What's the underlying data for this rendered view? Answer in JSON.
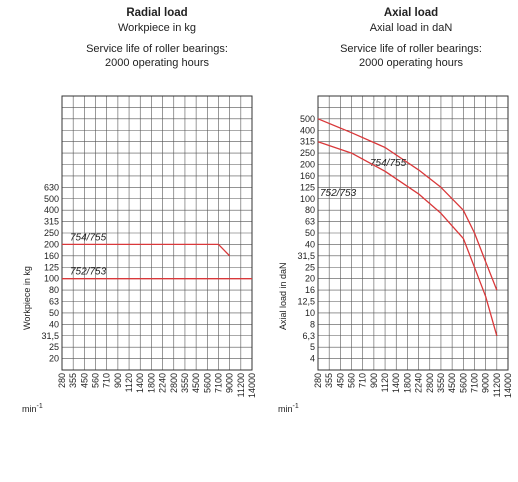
{
  "chart_data": [
    {
      "type": "line",
      "title": "Radial load",
      "subtitle": "Workpiece in kg",
      "note_line1": "Service life of roller bearings:",
      "note_line2": "2000 operating hours",
      "ylabel": "Workpiece in kg",
      "xunit": "min",
      "xunit_exp": "-1",
      "x": [
        "280",
        "355",
        "450",
        "560",
        "710",
        "900",
        "1120",
        "1400",
        "1800",
        "2240",
        "2800",
        "3550",
        "4500",
        "5600",
        "7100",
        "9000",
        "11200",
        "14000"
      ],
      "y_ticks": [
        "20",
        "25",
        "31,5",
        "40",
        "50",
        "63",
        "80",
        "100",
        "125",
        "160",
        "200",
        "250",
        "315",
        "400",
        "500",
        "630"
      ],
      "grid_rows": 24,
      "series": [
        {
          "name": "754/755",
          "points": [
            [
              280,
              200
            ],
            [
              7100,
              200
            ],
            [
              9000,
              160
            ]
          ]
        },
        {
          "name": "752/753",
          "points": [
            [
              280,
              100
            ],
            [
              14000,
              100
            ]
          ]
        }
      ]
    },
    {
      "type": "line",
      "title": "Axial load",
      "subtitle": "Axial load in daN",
      "note_line1": "Service life of roller bearings:",
      "note_line2": "2000 operating hours",
      "ylabel": "Axial load in daN",
      "xunit": "min",
      "xunit_exp": "-1",
      "x": [
        "280",
        "355",
        "450",
        "560",
        "710",
        "900",
        "1120",
        "1400",
        "1800",
        "2240",
        "2800",
        "3550",
        "4500",
        "5600",
        "7100",
        "9000",
        "11200",
        "14000"
      ],
      "y_ticks": [
        "4",
        "5",
        "6,3",
        "8",
        "10",
        "12,5",
        "16",
        "20",
        "25",
        "31,5",
        "40",
        "50",
        "63",
        "80",
        "100",
        "125",
        "160",
        "200",
        "250",
        "315",
        "400",
        "500"
      ],
      "grid_rows": 24,
      "series": [
        {
          "name": "754/755",
          "points": [
            [
              280,
              500
            ],
            [
              560,
              380
            ],
            [
              1120,
              280
            ],
            [
              2240,
              180
            ],
            [
              3550,
              125
            ],
            [
              5600,
              80
            ],
            [
              7100,
              50
            ],
            [
              9000,
              28
            ],
            [
              11200,
              16
            ]
          ]
        },
        {
          "name": "752/753",
          "points": [
            [
              280,
              315
            ],
            [
              560,
              250
            ],
            [
              1120,
              175
            ],
            [
              2240,
              110
            ],
            [
              3550,
              75
            ],
            [
              5600,
              45
            ],
            [
              7100,
              25
            ],
            [
              9000,
              14
            ],
            [
              11200,
              6.3
            ]
          ]
        }
      ]
    }
  ]
}
